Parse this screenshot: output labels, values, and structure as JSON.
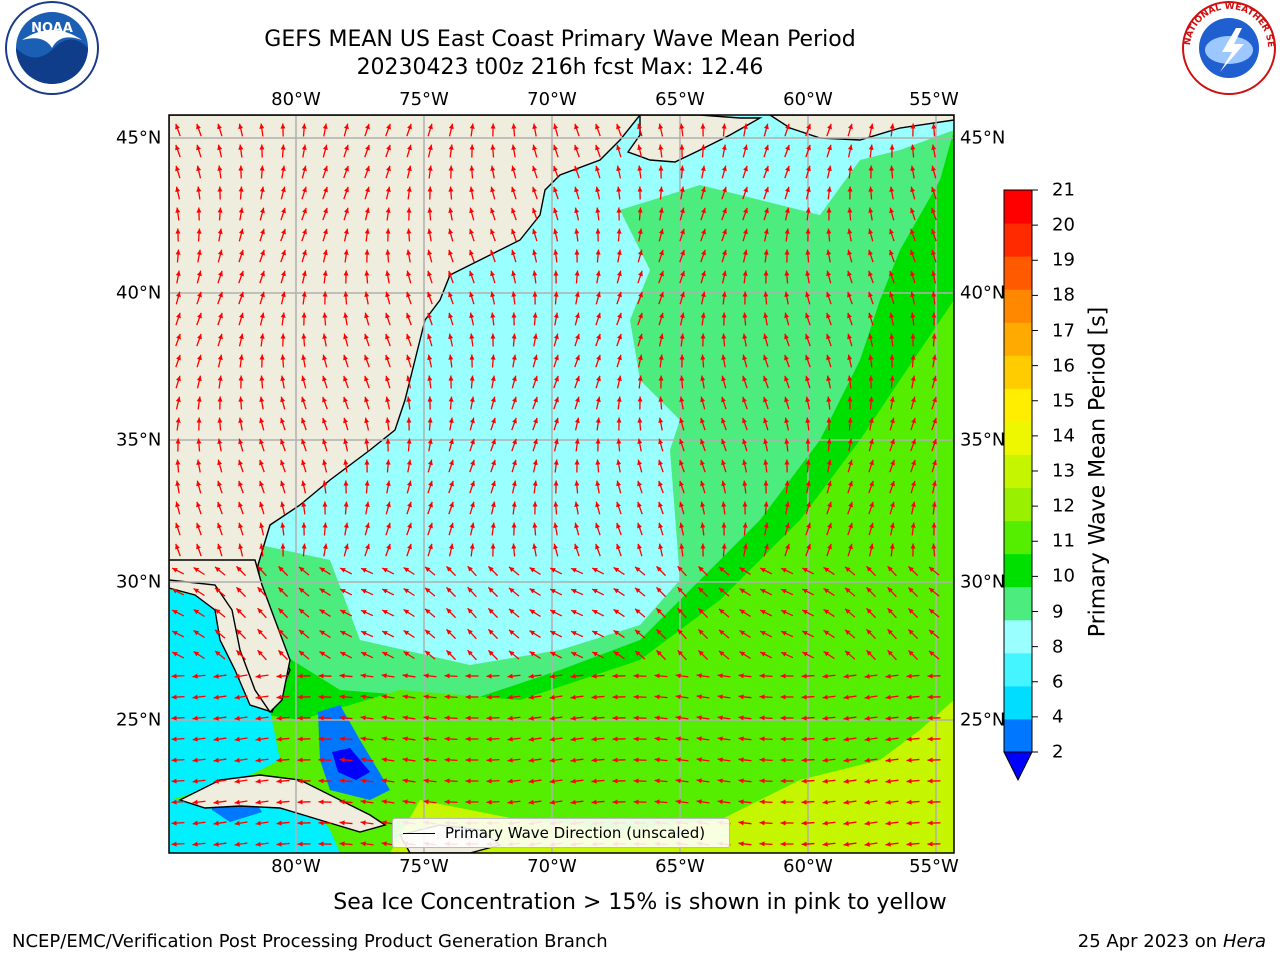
{
  "header": {
    "title_line1": "GEFS MEAN US East Coast Primary Wave Mean Period",
    "title_line2": "20230423 t00z 216h fcst   Max: 12.46"
  },
  "logos": {
    "left": "NOAA",
    "right": "NATIONAL WEATHER SERVICE"
  },
  "map": {
    "lon_ticks": [
      "80°W",
      "75°W",
      "70°W",
      "65°W",
      "60°W",
      "55°W"
    ],
    "lat_ticks": [
      "45°N",
      "40°N",
      "35°N",
      "30°N",
      "25°N"
    ],
    "land_color": "#efedde",
    "arrow_color": "#ff0000",
    "legend_text": "Primary Wave Direction (unscaled)"
  },
  "colorbar": {
    "label": "Primary Wave Mean Period [s]",
    "ticks": [
      "21",
      "20",
      "19",
      "18",
      "17",
      "16",
      "15",
      "14",
      "13",
      "12",
      "11",
      "10",
      "9",
      "8",
      "6",
      "4",
      "2"
    ],
    "colors": [
      "#0000ff",
      "#0077ff",
      "#00ddff",
      "#44f4ff",
      "#99ffff",
      "#4ced7e",
      "#00e000",
      "#55ee00",
      "#99f000",
      "#c6f500",
      "#eef700",
      "#ffee00",
      "#ffcc00",
      "#ffaa00",
      "#ff8800",
      "#ff5a00",
      "#ff2a00",
      "#ff0000"
    ]
  },
  "footer": {
    "ice_note": "Sea Ice Concentration > 15% is shown in pink to yellow",
    "credit_left": "NCEP/EMC/Verification Post Processing Product Generation Branch",
    "credit_date": "25 Apr 2023 on ",
    "credit_machine": "Hera"
  }
}
